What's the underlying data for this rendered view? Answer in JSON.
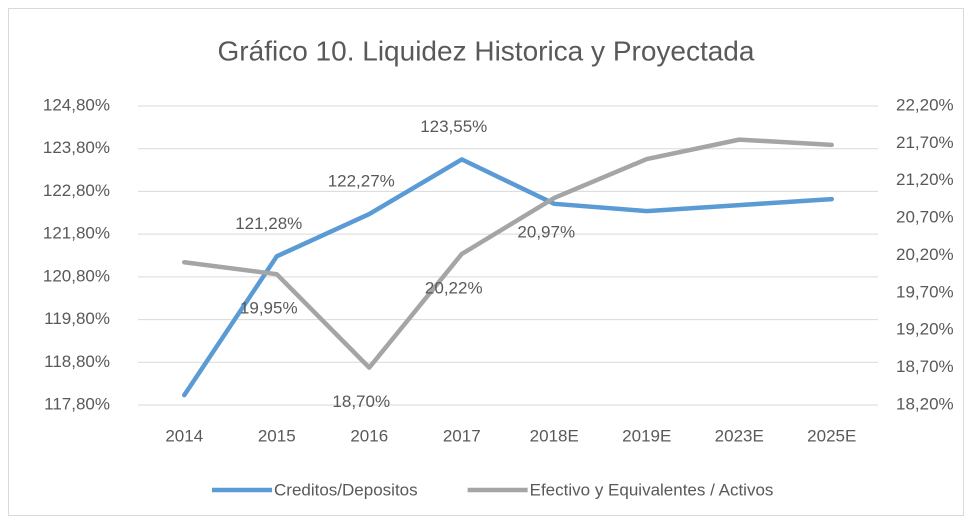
{
  "chart_data": {
    "type": "line",
    "title": "Gráfico 10.  Liquidez Historica y Proyectada",
    "categories": [
      "2014",
      "2015",
      "2016",
      "2017",
      "2018E",
      "2019E",
      "2023E",
      "2025E"
    ],
    "series": [
      {
        "name": "Creditos/Depositos",
        "color": "#5b9bd5",
        "axis": "y",
        "values": [
          118.03,
          121.28,
          122.27,
          123.55,
          122.51,
          122.34,
          122.48,
          122.62
        ],
        "value_labels": [
          null,
          "121,28%",
          "122,27%",
          "123,55%",
          null,
          null,
          null,
          null
        ]
      },
      {
        "name": "Efectivo y Equivalentes / Activos",
        "color": "#a5a5a5",
        "axis": "y2",
        "values": [
          20.11,
          19.95,
          18.7,
          20.22,
          20.97,
          21.49,
          21.75,
          21.68
        ],
        "value_labels": [
          null,
          "19,95%",
          "18,70%",
          "20,22%",
          "20,97%",
          null,
          null,
          null
        ]
      }
    ],
    "ylim": [
      117.8,
      124.8
    ],
    "yticks": [
      {
        "value": 117.8,
        "label": "117,80%"
      },
      {
        "value": 118.8,
        "label": "118,80%"
      },
      {
        "value": 119.8,
        "label": "119,80%"
      },
      {
        "value": 120.8,
        "label": "120,80%"
      },
      {
        "value": 121.8,
        "label": "121,80%"
      },
      {
        "value": 122.8,
        "label": "122,80%"
      },
      {
        "value": 123.8,
        "label": "123,80%"
      },
      {
        "value": 124.8,
        "label": "124,80%"
      }
    ],
    "y2lim": [
      18.2,
      22.2
    ],
    "y2ticks": [
      {
        "value": 18.2,
        "label": "18,20%"
      },
      {
        "value": 18.7,
        "label": "18,70%"
      },
      {
        "value": 19.2,
        "label": "19,20%"
      },
      {
        "value": 19.7,
        "label": "19,70%"
      },
      {
        "value": 20.2,
        "label": "20,20%"
      },
      {
        "value": 20.7,
        "label": "20,70%"
      },
      {
        "value": 21.2,
        "label": "21,20%"
      },
      {
        "value": 21.7,
        "label": "21,70%"
      },
      {
        "value": 22.2,
        "label": "22,20%"
      }
    ],
    "grid": true,
    "legend": "bottom"
  }
}
